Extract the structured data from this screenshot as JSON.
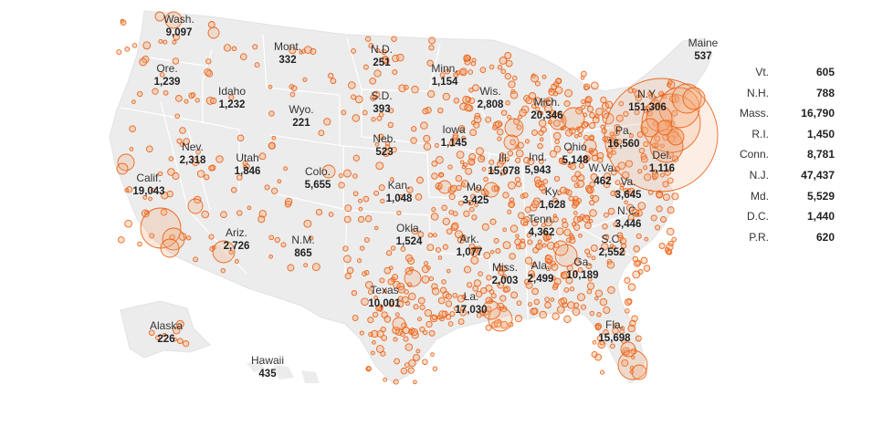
{
  "colors": {
    "land": "#ececec",
    "border": "#ffffff",
    "dot_stroke": "#ea5b0c",
    "dot_fill": "#f5a36f"
  },
  "states": [
    {
      "name": "Wash.",
      "value": "9,097"
    },
    {
      "name": "Ore.",
      "value": "1,239"
    },
    {
      "name": "Idaho",
      "value": "1,232"
    },
    {
      "name": "Mont.",
      "value": "332"
    },
    {
      "name": "Wyo.",
      "value": "221"
    },
    {
      "name": "Nev.",
      "value": "2,318"
    },
    {
      "name": "Utah",
      "value": "1,846"
    },
    {
      "name": "Calif.",
      "value": "19,043"
    },
    {
      "name": "Colo.",
      "value": "5,655"
    },
    {
      "name": "Ariz.",
      "value": "2,726"
    },
    {
      "name": "N.M.",
      "value": "865"
    },
    {
      "name": "N.D.",
      "value": "251"
    },
    {
      "name": "S.D.",
      "value": "393"
    },
    {
      "name": "Neb.",
      "value": "523"
    },
    {
      "name": "Kan.",
      "value": "1,048"
    },
    {
      "name": "Okla.",
      "value": "1,524"
    },
    {
      "name": "Texas",
      "value": "10,001"
    },
    {
      "name": "Minn.",
      "value": "1,154"
    },
    {
      "name": "Iowa",
      "value": "1,145"
    },
    {
      "name": "Mo.",
      "value": "3,425"
    },
    {
      "name": "Ark.",
      "value": "1,077"
    },
    {
      "name": "La.",
      "value": "17,030"
    },
    {
      "name": "Wis.",
      "value": "2,808"
    },
    {
      "name": "Ill.",
      "value": "15,078"
    },
    {
      "name": "Mich.",
      "value": "20,346"
    },
    {
      "name": "Ind.",
      "value": "5,943"
    },
    {
      "name": "Ohio",
      "value": "5,148"
    },
    {
      "name": "Ky.",
      "value": "1,628"
    },
    {
      "name": "Tenn.",
      "value": "4,362"
    },
    {
      "name": "Miss.",
      "value": "2,003"
    },
    {
      "name": "Ala.",
      "value": "2,499"
    },
    {
      "name": "Ga.",
      "value": "10,189"
    },
    {
      "name": "Fla.",
      "value": "15,698"
    },
    {
      "name": "S.C.",
      "value": "2,552"
    },
    {
      "name": "N.C.",
      "value": "3,446"
    },
    {
      "name": "Va.",
      "value": "3,645"
    },
    {
      "name": "W.Va.",
      "value": "462"
    },
    {
      "name": "Pa.",
      "value": "16,560"
    },
    {
      "name": "N.Y.",
      "value": "151,306"
    },
    {
      "name": "Del.",
      "value": "1,116"
    },
    {
      "name": "Maine",
      "value": "537"
    },
    {
      "name": "Alaska",
      "value": "226"
    },
    {
      "name": "Hawaii",
      "value": "435"
    }
  ],
  "side_list": [
    {
      "name": "Vt.",
      "value": "605"
    },
    {
      "name": "N.H.",
      "value": "788"
    },
    {
      "name": "Mass.",
      "value": "16,790"
    },
    {
      "name": "R.I.",
      "value": "1,450"
    },
    {
      "name": "Conn.",
      "value": "8,781"
    },
    {
      "name": "N.J.",
      "value": "47,437"
    },
    {
      "name": "Md.",
      "value": "5,529"
    },
    {
      "name": "D.C.",
      "value": "1,440"
    },
    {
      "name": "P.R.",
      "value": "620"
    }
  ]
}
